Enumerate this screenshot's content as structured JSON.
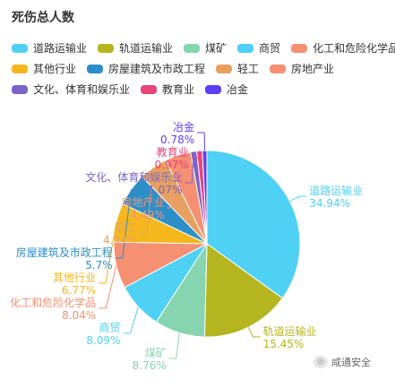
{
  "chart_data": {
    "type": "pie",
    "title": "死伤总人数",
    "legend_position": "top-left",
    "categories": [
      "道路运输业",
      "轨道运输业",
      "煤矿",
      "商贸",
      "化工和危险化学品",
      "其他行业",
      "房屋建筑及市政工程",
      "轻工",
      "房地产业",
      "文化、体育和娱乐业",
      "教育业",
      "冶金"
    ],
    "values": [
      34.94,
      15.45,
      8.76,
      8.09,
      8.04,
      6.77,
      5.7,
      4.94,
      4.49,
      1.07,
      0.97,
      0.78
    ],
    "value_labels": [
      "34.94%",
      "15.45%",
      "8.76%",
      "8.09%",
      "8.04%",
      "6.77%",
      "5.7%",
      "4.94%",
      "4.49%",
      "1.07%",
      "0.97%",
      "0.78%"
    ],
    "colors": [
      "#4fd0f5",
      "#b5b51f",
      "#87d5b0",
      "#4fd0f5",
      "#f59073",
      "#f5b71c",
      "#2c8fc7",
      "#e8a060",
      "#f59073",
      "#7b64c8",
      "#e8447a",
      "#5b3ff5"
    ],
    "legend_rows": [
      [
        0,
        1,
        2,
        3,
        4
      ],
      [
        5,
        6,
        7,
        8
      ],
      [
        9,
        10,
        11
      ]
    ]
  },
  "watermark": {
    "text": "咸通安全",
    "icon": "wechat-icon"
  }
}
